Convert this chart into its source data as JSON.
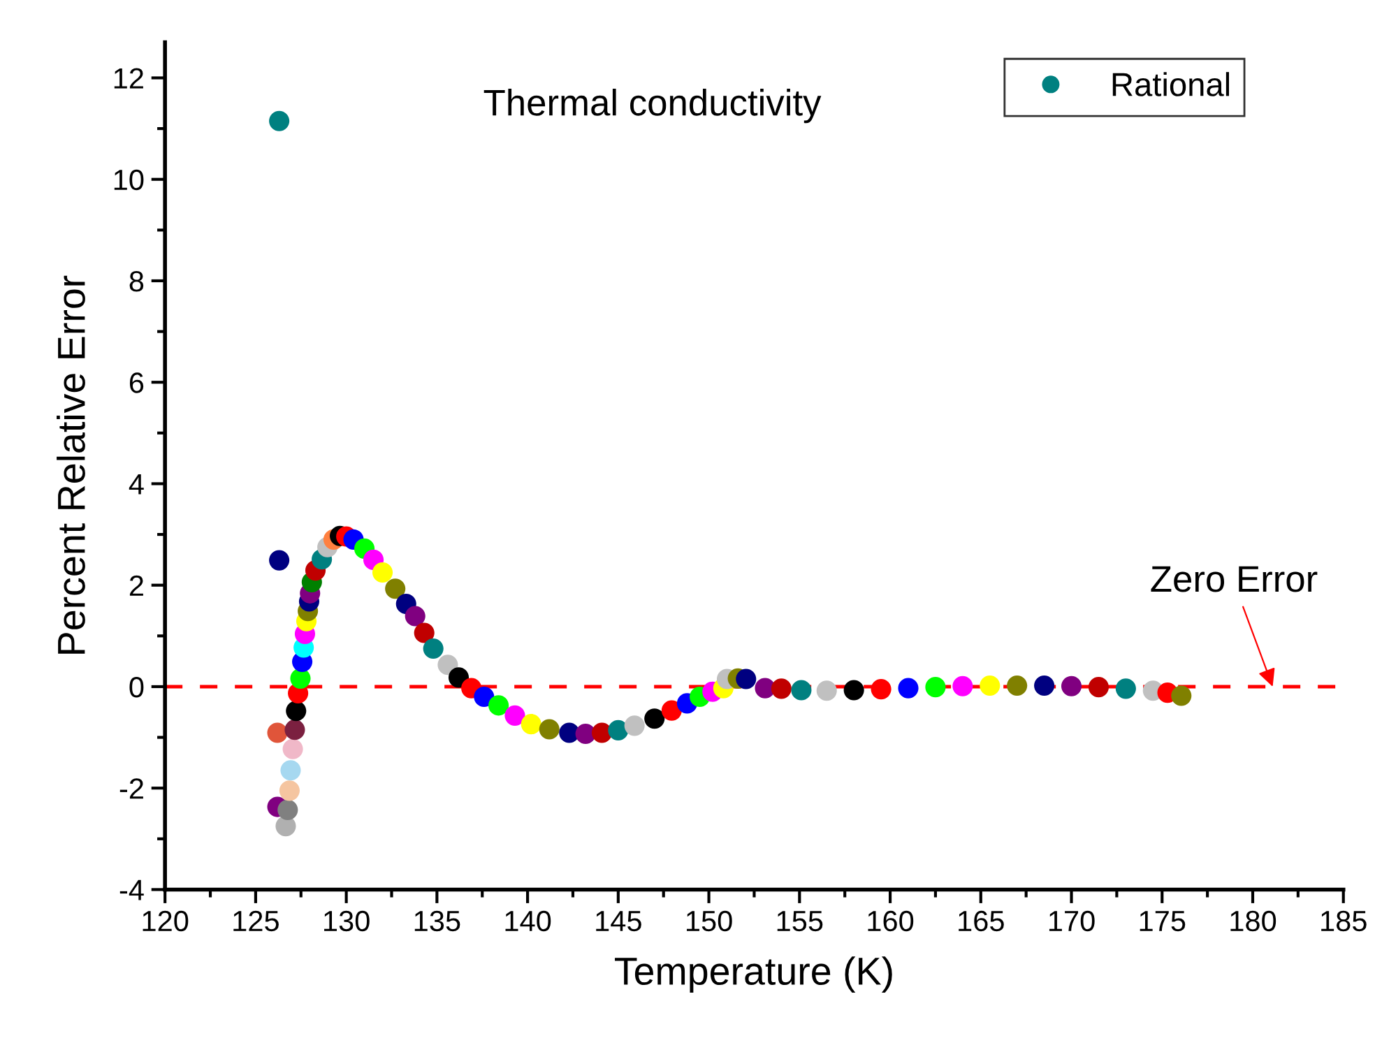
{
  "chart_data": {
    "type": "scatter",
    "title": "Thermal conductivity",
    "xlabel": "Temperature (K)",
    "ylabel": "Percent Relative Error",
    "xlim": [
      120,
      185
    ],
    "xticks": [
      120,
      125,
      130,
      135,
      140,
      145,
      150,
      155,
      160,
      165,
      170,
      175,
      180,
      185
    ],
    "ylim": [
      -4,
      12.7
    ],
    "yticks": [
      -4,
      -2,
      0,
      2,
      4,
      6,
      8,
      10,
      12
    ],
    "grid": false,
    "legend": "top right",
    "marker": "circle",
    "ref_lines": [
      {
        "axis": "y",
        "value": 0,
        "label": "Zero Error",
        "color": "#ff0000",
        "line_style": "dashed"
      }
    ],
    "series": [
      {
        "name": "Rational",
        "color": "#008080",
        "x": [
          126.3,
          126.3,
          126.2,
          126.2,
          126.66,
          126.77,
          126.87,
          126.93,
          127.05,
          127.16,
          127.23,
          127.34,
          127.47,
          127.57,
          127.65,
          127.72,
          127.8,
          127.88,
          127.95,
          128.0,
          128.1,
          128.3,
          128.65,
          128.96,
          129.3,
          129.65,
          130.0,
          130.4,
          131.0,
          131.5,
          132.0,
          132.7,
          133.3,
          133.8,
          134.3,
          134.8,
          135.6,
          136.2,
          136.9,
          137.6,
          138.4,
          139.3,
          140.2,
          141.2,
          142.3,
          143.2,
          144.1,
          145.0,
          145.9,
          147.0,
          147.95,
          148.8,
          149.5,
          150.2,
          150.8,
          151.0,
          151.6,
          152.05,
          153.1,
          154.0,
          155.1,
          156.5,
          158.0,
          159.5,
          161.0,
          162.5,
          164.0,
          165.5,
          167.0,
          168.5,
          170.0,
          171.5,
          173.0,
          174.5,
          175.3,
          176.06
        ],
        "values": [
          11.15,
          2.49,
          -0.91,
          -2.37,
          -2.75,
          -2.43,
          -2.05,
          -1.65,
          -1.23,
          -0.85,
          -0.48,
          -0.13,
          0.16,
          0.49,
          0.77,
          1.04,
          1.29,
          1.49,
          1.68,
          1.84,
          2.06,
          2.29,
          2.51,
          2.75,
          2.9,
          2.97,
          2.96,
          2.9,
          2.72,
          2.5,
          2.25,
          1.93,
          1.63,
          1.39,
          1.06,
          0.75,
          0.43,
          0.18,
          -0.03,
          -0.2,
          -0.37,
          -0.57,
          -0.74,
          -0.84,
          -0.91,
          -0.93,
          -0.91,
          -0.86,
          -0.77,
          -0.63,
          -0.47,
          -0.33,
          -0.2,
          -0.1,
          -0.03,
          0.15,
          0.16,
          0.15,
          -0.03,
          -0.04,
          -0.07,
          -0.08,
          -0.07,
          -0.05,
          -0.03,
          -0.01,
          0.01,
          0.02,
          0.02,
          0.02,
          0.01,
          -0.01,
          -0.04,
          -0.08,
          -0.12,
          -0.18
        ],
        "colors": [
          "#008080",
          "#000080",
          "#e0553a",
          "#800080",
          "#b0b0b0",
          "#808080",
          "#f5c5a0",
          "#a6d8f0",
          "#f0b8c8",
          "#7b2040",
          "#000000",
          "#ff0000",
          "#00ff00",
          "#0000ff",
          "#00ffff",
          "#ff00ff",
          "#ffff00",
          "#808000",
          "#000080",
          "#800080",
          "#008000",
          "#c00000",
          "#008080",
          "#c0c0c0",
          "#ff8040",
          "#000000",
          "#ff0000",
          "#0000ff",
          "#00ff00",
          "#ff00ff",
          "#ffff00",
          "#808000",
          "#000080",
          "#800080",
          "#c00000",
          "#008080",
          "#c0c0c0",
          "#000000",
          "#ff0000",
          "#0000ff",
          "#00ff00",
          "#ff00ff",
          "#ffff00",
          "#808000",
          "#000080",
          "#800080",
          "#c00000",
          "#008080",
          "#c0c0c0",
          "#000000",
          "#ff0000",
          "#0000ff",
          "#00ff00",
          "#ff00ff",
          "#ffff00",
          "#c0c0c0",
          "#808000",
          "#000080",
          "#800080",
          "#c00000",
          "#008080",
          "#c0c0c0",
          "#000000",
          "#ff0000",
          "#0000ff",
          "#00ff00",
          "#ff00ff",
          "#ffff00",
          "#808000",
          "#000080",
          "#800080",
          "#c00000",
          "#008080",
          "#c0c0c0",
          "#ff0000",
          "#808000"
        ]
      }
    ]
  }
}
